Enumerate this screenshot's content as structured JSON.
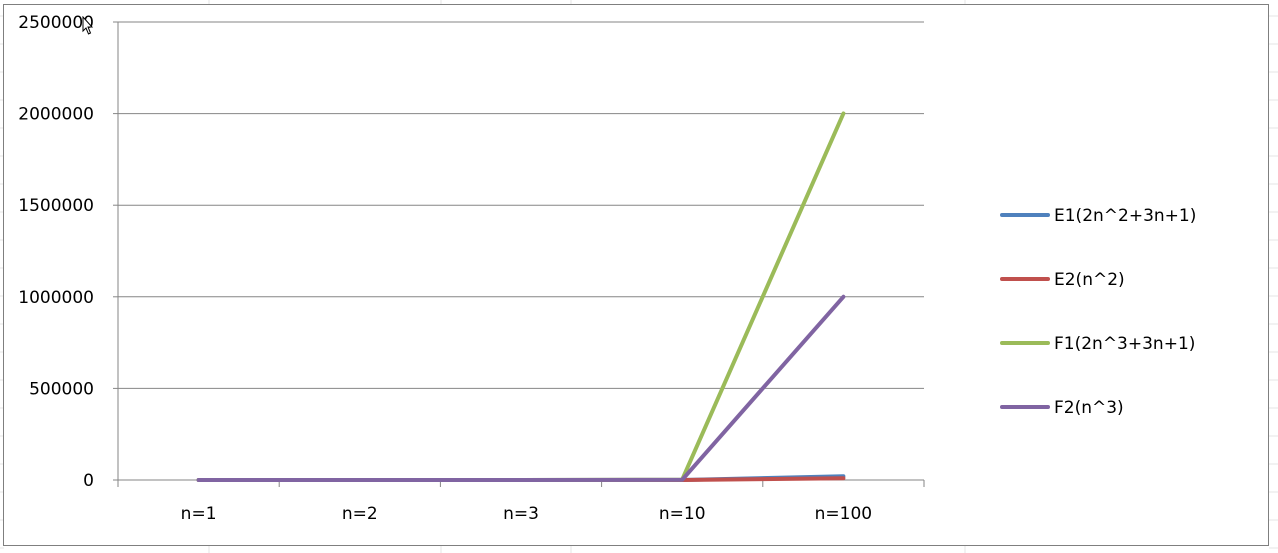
{
  "chart_data": {
    "type": "line",
    "categories": [
      "n=1",
      "n=2",
      "n=3",
      "n=10",
      "n=100"
    ],
    "series": [
      {
        "name": "E1(2n^2+3n+1)",
        "color": "#4f81bd",
        "values": [
          6,
          15,
          28,
          231,
          20301
        ]
      },
      {
        "name": "E2(n^2)",
        "color": "#c0504d",
        "values": [
          1,
          4,
          9,
          100,
          10000
        ]
      },
      {
        "name": "F1(2n^3+3n+1)",
        "color": "#9bbb59",
        "values": [
          6,
          23,
          64,
          2031,
          2000301
        ]
      },
      {
        "name": "F2(n^3)",
        "color": "#8064a2",
        "values": [
          1,
          8,
          27,
          1000,
          1000000
        ]
      }
    ],
    "ylim": [
      0,
      2500000
    ],
    "yticks": [
      0,
      500000,
      1000000,
      1500000,
      2000000,
      2500000
    ],
    "ytick_labels": [
      "0",
      "500000",
      "1000000",
      "1500000",
      "2000000",
      "2500000"
    ],
    "grid": true,
    "legend": "right",
    "title": "",
    "xlabel": "",
    "ylabel": ""
  }
}
